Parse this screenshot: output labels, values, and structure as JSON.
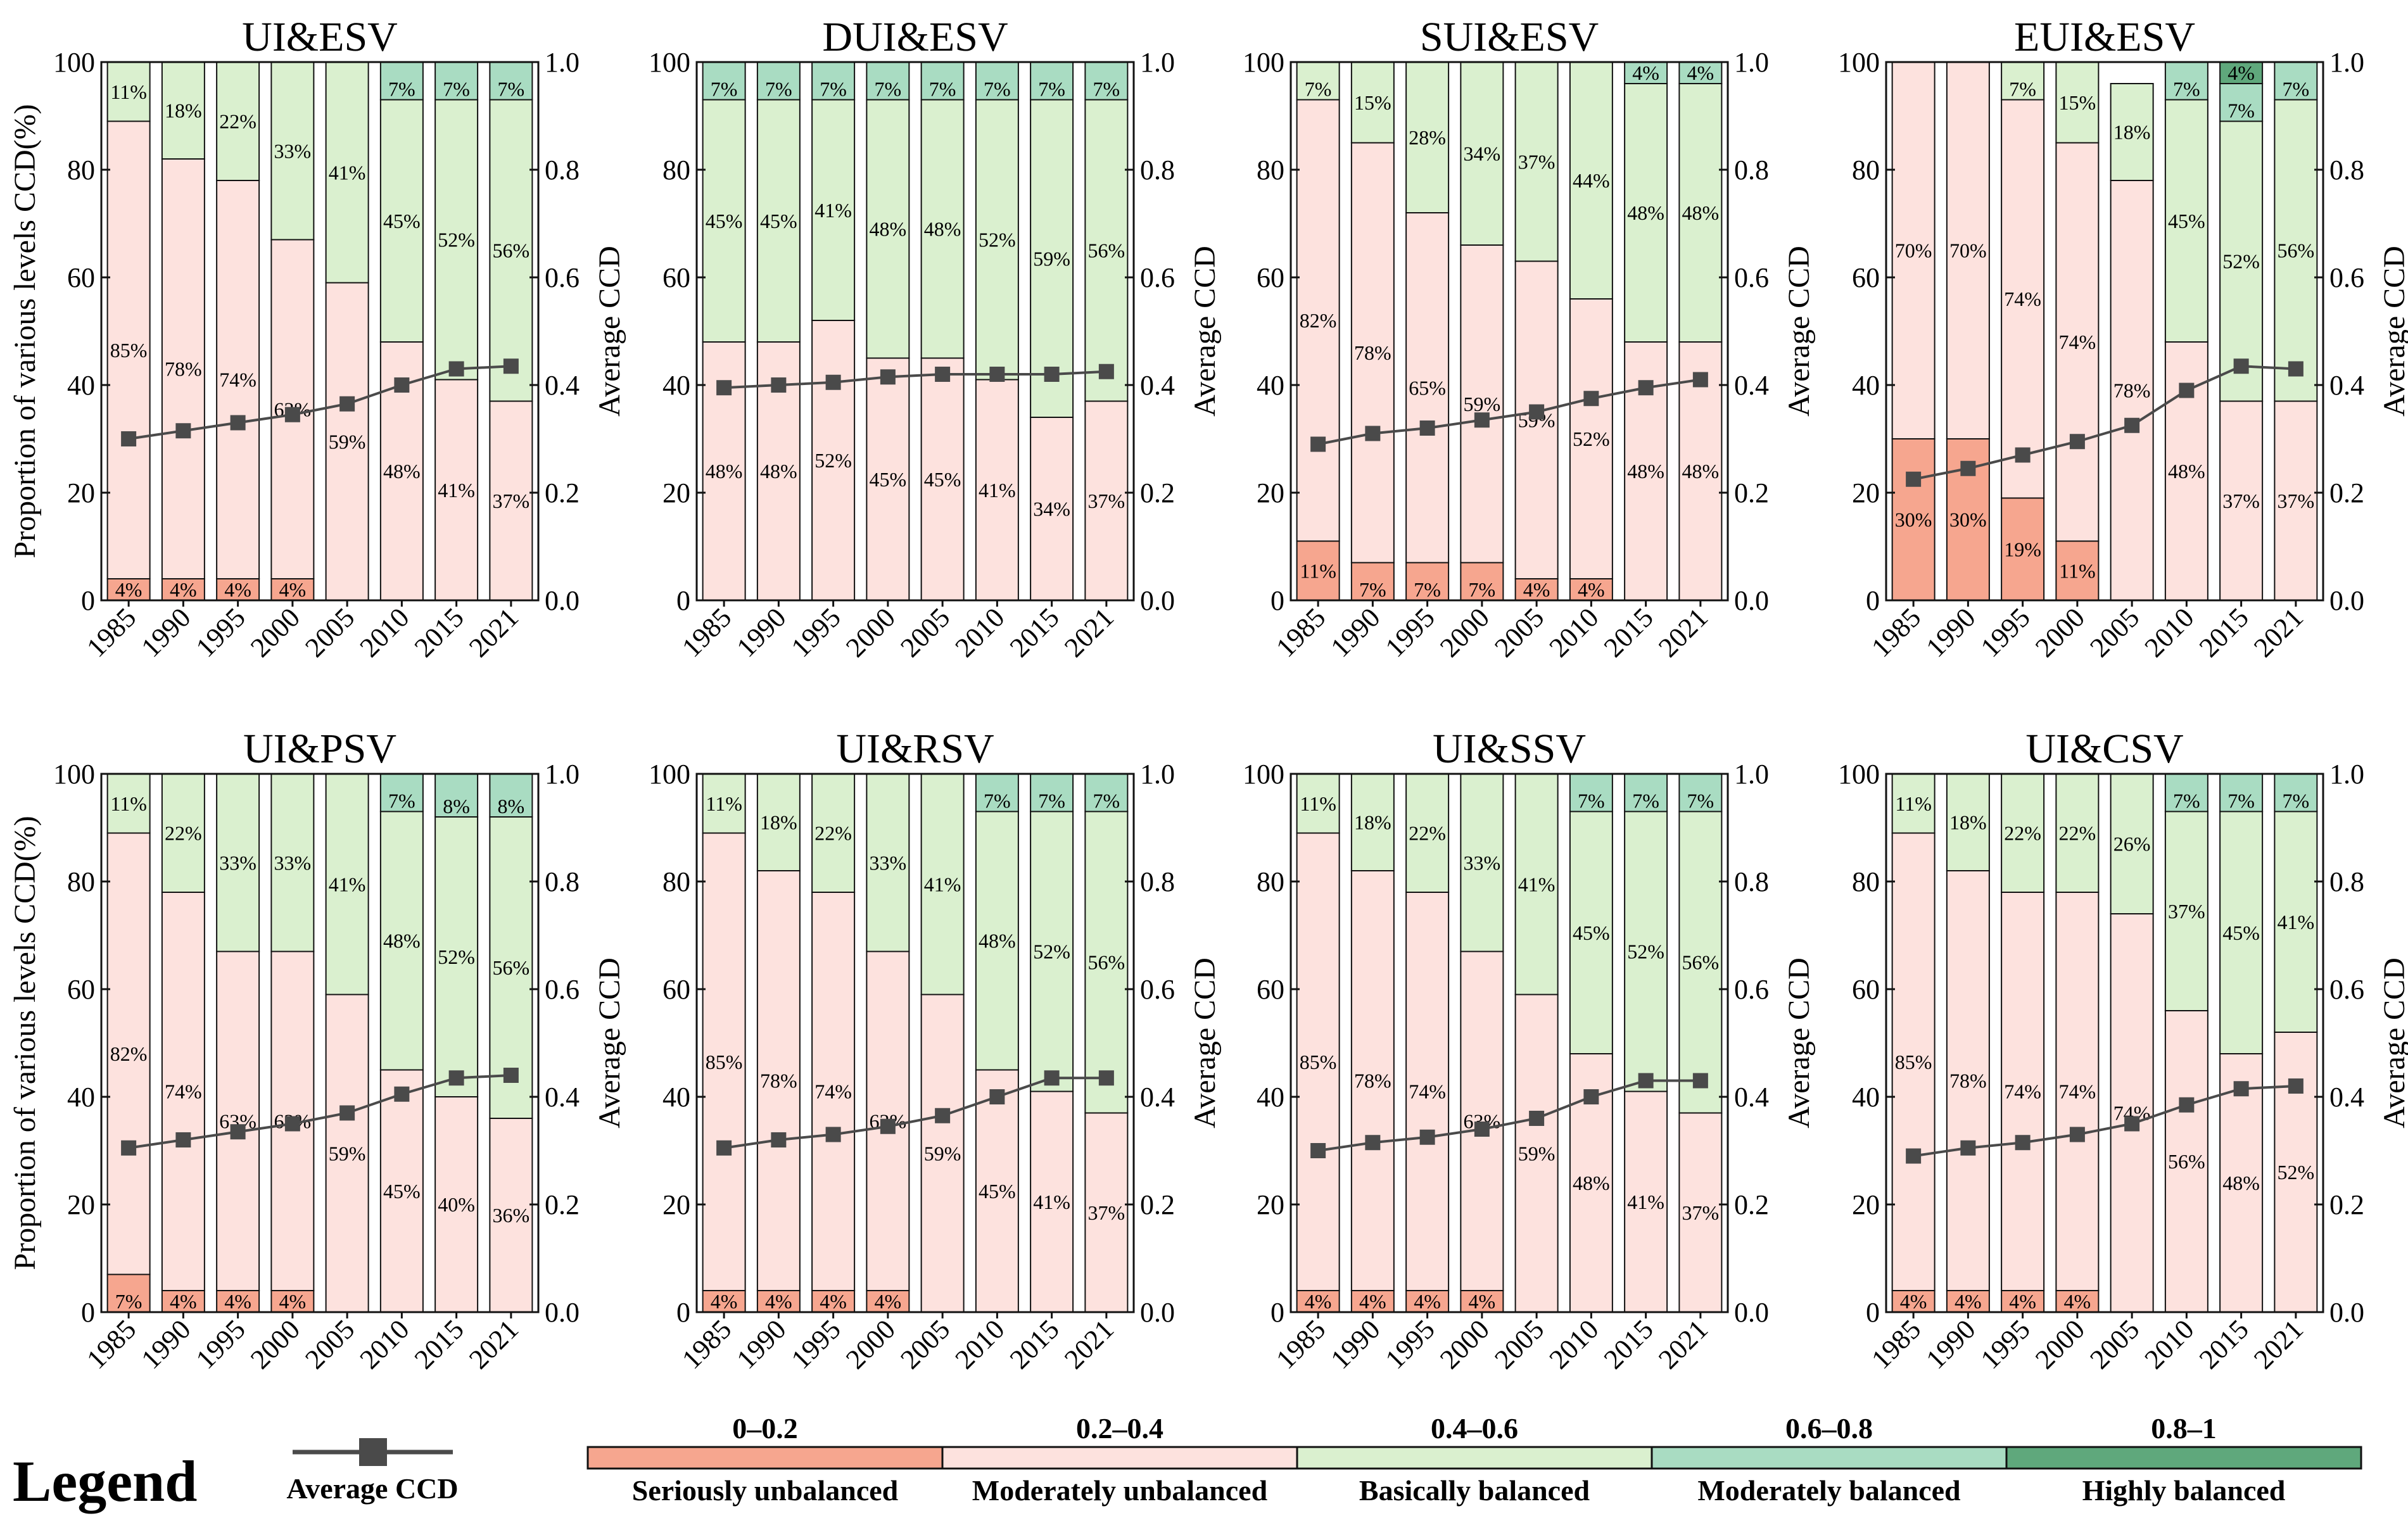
{
  "colors": {
    "seriously_unbalanced": "#f6a68f",
    "moderately_unbalanced": "#fde2de",
    "basically_balanced": "#daf0cf",
    "moderately_balanced": "#a9dcc2",
    "highly_balanced": "#5fa87c",
    "line": "#4a4a4a"
  },
  "legend": {
    "title": "Legend",
    "line_label": "Average CCD",
    "items": [
      {
        "range": "0–0.2",
        "label": "Seriously unbalanced",
        "color": "#f6a68f"
      },
      {
        "range": "0.2–0.4",
        "label": "Moderately unbalanced",
        "color": "#fde2de"
      },
      {
        "range": "0.4–0.6",
        "label": "Basically balanced",
        "color": "#daf0cf"
      },
      {
        "range": "0.6–0.8",
        "label": "Moderately balanced",
        "color": "#a9dcc2"
      },
      {
        "range": "0.8–1",
        "label": "Highly balanced",
        "color": "#5fa87c"
      }
    ]
  },
  "chart_data": [
    {
      "type": "bar",
      "title": "UI&ESV",
      "categories": [
        "1985",
        "1990",
        "1995",
        "2000",
        "2005",
        "2010",
        "2015",
        "2021"
      ],
      "ylabel": "Proportion of various levels CCD(%)",
      "y2label": "Average CCD",
      "ylim": [
        0,
        100
      ],
      "y2lim": [
        0,
        1.0
      ],
      "yticks": [
        "0",
        "20",
        "40",
        "60",
        "80",
        "100"
      ],
      "y2ticks": [
        "0.0",
        "0.2",
        "0.4",
        "0.6",
        "0.8",
        "1.0"
      ],
      "series": [
        {
          "name": "Seriously unbalanced",
          "values": [
            4,
            4,
            4,
            4,
            0,
            0,
            0,
            0
          ]
        },
        {
          "name": "Moderately unbalanced",
          "values": [
            85,
            78,
            74,
            63,
            59,
            48,
            41,
            37
          ]
        },
        {
          "name": "Basically balanced",
          "values": [
            11,
            18,
            22,
            33,
            41,
            45,
            52,
            56
          ]
        },
        {
          "name": "Moderately balanced",
          "values": [
            0,
            0,
            0,
            0,
            0,
            7,
            7,
            7
          ]
        },
        {
          "name": "Highly balanced",
          "values": [
            0,
            0,
            0,
            0,
            0,
            0,
            0,
            0
          ]
        }
      ],
      "line": {
        "name": "Average CCD",
        "values": [
          0.3,
          0.315,
          0.33,
          0.345,
          0.365,
          0.4,
          0.43,
          0.435
        ]
      }
    },
    {
      "type": "bar",
      "title": "DUI&ESV",
      "categories": [
        "1985",
        "1990",
        "1995",
        "2000",
        "2005",
        "2010",
        "2015",
        "2021"
      ],
      "ylabel": "",
      "y2label": "Average CCD",
      "ylim": [
        0,
        100
      ],
      "y2lim": [
        0,
        1.0
      ],
      "yticks": [
        "0",
        "20",
        "40",
        "60",
        "80",
        "100"
      ],
      "y2ticks": [
        "0.0",
        "0.2",
        "0.4",
        "0.6",
        "0.8",
        "1.0"
      ],
      "series": [
        {
          "name": "Seriously unbalanced",
          "values": [
            0,
            0,
            0,
            0,
            0,
            0,
            0,
            0
          ]
        },
        {
          "name": "Moderately unbalanced",
          "values": [
            48,
            48,
            52,
            45,
            45,
            41,
            34,
            37
          ]
        },
        {
          "name": "Basically balanced",
          "values": [
            45,
            45,
            41,
            48,
            48,
            52,
            59,
            56
          ]
        },
        {
          "name": "Moderately balanced",
          "values": [
            7,
            7,
            7,
            7,
            7,
            7,
            7,
            7
          ]
        },
        {
          "name": "Highly balanced",
          "values": [
            0,
            0,
            0,
            0,
            0,
            0,
            0,
            0
          ]
        }
      ],
      "line": {
        "name": "Average CCD",
        "values": [
          0.395,
          0.4,
          0.405,
          0.415,
          0.42,
          0.42,
          0.42,
          0.425
        ]
      }
    },
    {
      "type": "bar",
      "title": "SUI&ESV",
      "categories": [
        "1985",
        "1990",
        "1995",
        "2000",
        "2005",
        "2010",
        "2015",
        "2021"
      ],
      "ylabel": "",
      "y2label": "Average CCD",
      "ylim": [
        0,
        100
      ],
      "y2lim": [
        0,
        1.0
      ],
      "yticks": [
        "0",
        "20",
        "40",
        "60",
        "80",
        "100"
      ],
      "y2ticks": [
        "0.0",
        "0.2",
        "0.4",
        "0.6",
        "0.8",
        "1.0"
      ],
      "series": [
        {
          "name": "Seriously unbalanced",
          "values": [
            11,
            7,
            7,
            7,
            4,
            4,
            0,
            0
          ]
        },
        {
          "name": "Moderately unbalanced",
          "values": [
            82,
            78,
            65,
            59,
            59,
            52,
            48,
            48
          ]
        },
        {
          "name": "Basically balanced",
          "values": [
            7,
            15,
            28,
            34,
            37,
            44,
            48,
            48
          ]
        },
        {
          "name": "Moderately balanced",
          "values": [
            0,
            0,
            0,
            0,
            0,
            0,
            4,
            4
          ]
        },
        {
          "name": "Highly balanced",
          "values": [
            0,
            0,
            0,
            0,
            0,
            0,
            0,
            0
          ]
        }
      ],
      "line": {
        "name": "Average CCD",
        "values": [
          0.29,
          0.31,
          0.32,
          0.335,
          0.35,
          0.375,
          0.395,
          0.41
        ]
      }
    },
    {
      "type": "bar",
      "title": "EUI&ESV",
      "categories": [
        "1985",
        "1990",
        "1995",
        "2000",
        "2005",
        "2010",
        "2015",
        "2021"
      ],
      "ylabel": "",
      "y2label": "Average CCD",
      "ylim": [
        0,
        100
      ],
      "y2lim": [
        0,
        1.0
      ],
      "yticks": [
        "0",
        "20",
        "40",
        "60",
        "80",
        "100"
      ],
      "y2ticks": [
        "0.0",
        "0.2",
        "0.4",
        "0.6",
        "0.8",
        "1.0"
      ],
      "series": [
        {
          "name": "Seriously unbalanced",
          "values": [
            30,
            30,
            19,
            11,
            0,
            0,
            0,
            0
          ]
        },
        {
          "name": "Moderately unbalanced",
          "values": [
            70,
            70,
            74,
            74,
            78,
            48,
            37,
            37
          ]
        },
        {
          "name": "Basically balanced",
          "values": [
            0,
            0,
            7,
            15,
            18,
            45,
            52,
            56
          ]
        },
        {
          "name": "Moderately balanced",
          "values": [
            0,
            0,
            0,
            0,
            0,
            7,
            7,
            7
          ]
        },
        {
          "name": "Highly balanced",
          "values": [
            0,
            0,
            0,
            0,
            0,
            0,
            4,
            0
          ]
        }
      ],
      "line": {
        "name": "Average CCD",
        "values": [
          0.225,
          0.245,
          0.27,
          0.295,
          0.325,
          0.39,
          0.435,
          0.43
        ]
      }
    },
    {
      "type": "bar",
      "title": "UI&PSV",
      "categories": [
        "1985",
        "1990",
        "1995",
        "2000",
        "2005",
        "2010",
        "2015",
        "2021"
      ],
      "ylabel": "Proportion of various levels CCD(%)",
      "y2label": "Average CCD",
      "ylim": [
        0,
        100
      ],
      "y2lim": [
        0,
        1.0
      ],
      "yticks": [
        "0",
        "20",
        "40",
        "60",
        "80",
        "100"
      ],
      "y2ticks": [
        "0.0",
        "0.2",
        "0.4",
        "0.6",
        "0.8",
        "1.0"
      ],
      "series": [
        {
          "name": "Seriously unbalanced",
          "values": [
            7,
            4,
            4,
            4,
            0,
            0,
            0,
            0
          ]
        },
        {
          "name": "Moderately unbalanced",
          "values": [
            82,
            74,
            63,
            63,
            59,
            45,
            40,
            36
          ]
        },
        {
          "name": "Basically balanced",
          "values": [
            11,
            22,
            33,
            33,
            41,
            48,
            52,
            56
          ]
        },
        {
          "name": "Moderately balanced",
          "values": [
            0,
            0,
            0,
            0,
            0,
            7,
            8,
            8
          ]
        },
        {
          "name": "Highly balanced",
          "values": [
            0,
            0,
            0,
            0,
            0,
            0,
            0,
            0
          ]
        }
      ],
      "line": {
        "name": "Average CCD",
        "values": [
          0.305,
          0.32,
          0.335,
          0.35,
          0.37,
          0.405,
          0.435,
          0.44
        ]
      }
    },
    {
      "type": "bar",
      "title": "UI&RSV",
      "categories": [
        "1985",
        "1990",
        "1995",
        "2000",
        "2005",
        "2010",
        "2015",
        "2021"
      ],
      "ylabel": "",
      "y2label": "Average CCD",
      "ylim": [
        0,
        100
      ],
      "y2lim": [
        0,
        1.0
      ],
      "yticks": [
        "0",
        "20",
        "40",
        "60",
        "80",
        "100"
      ],
      "y2ticks": [
        "0.0",
        "0.2",
        "0.4",
        "0.6",
        "0.8",
        "1.0"
      ],
      "series": [
        {
          "name": "Seriously unbalanced",
          "values": [
            4,
            4,
            4,
            4,
            0,
            0,
            0,
            0
          ]
        },
        {
          "name": "Moderately unbalanced",
          "values": [
            85,
            78,
            74,
            63,
            59,
            45,
            41,
            37
          ]
        },
        {
          "name": "Basically balanced",
          "values": [
            11,
            18,
            22,
            33,
            41,
            48,
            52,
            56
          ]
        },
        {
          "name": "Moderately balanced",
          "values": [
            0,
            0,
            0,
            0,
            0,
            7,
            7,
            7
          ]
        },
        {
          "name": "Highly balanced",
          "values": [
            0,
            0,
            0,
            0,
            0,
            0,
            0,
            0
          ]
        }
      ],
      "line": {
        "name": "Average CCD",
        "values": [
          0.305,
          0.32,
          0.33,
          0.345,
          0.365,
          0.4,
          0.435,
          0.435
        ]
      }
    },
    {
      "type": "bar",
      "title": "UI&SSV",
      "categories": [
        "1985",
        "1990",
        "1995",
        "2000",
        "2005",
        "2010",
        "2015",
        "2021"
      ],
      "ylabel": "",
      "y2label": "Average CCD",
      "ylim": [
        0,
        100
      ],
      "y2lim": [
        0,
        1.0
      ],
      "yticks": [
        "0",
        "20",
        "40",
        "60",
        "80",
        "100"
      ],
      "y2ticks": [
        "0.0",
        "0.2",
        "0.4",
        "0.6",
        "0.8",
        "1.0"
      ],
      "series": [
        {
          "name": "Seriously unbalanced",
          "values": [
            4,
            4,
            4,
            4,
            0,
            0,
            0,
            0
          ]
        },
        {
          "name": "Moderately unbalanced",
          "values": [
            85,
            78,
            74,
            63,
            59,
            48,
            41,
            37
          ]
        },
        {
          "name": "Basically balanced",
          "values": [
            11,
            18,
            22,
            33,
            41,
            45,
            52,
            56
          ]
        },
        {
          "name": "Moderately balanced",
          "values": [
            0,
            0,
            0,
            0,
            0,
            7,
            7,
            7
          ]
        },
        {
          "name": "Highly balanced",
          "values": [
            0,
            0,
            0,
            0,
            0,
            0,
            0,
            0
          ]
        }
      ],
      "line": {
        "name": "Average CCD",
        "values": [
          0.3,
          0.315,
          0.325,
          0.34,
          0.36,
          0.4,
          0.43,
          0.43
        ]
      }
    },
    {
      "type": "bar",
      "title": "UI&CSV",
      "categories": [
        "1985",
        "1990",
        "1995",
        "2000",
        "2005",
        "2010",
        "2015",
        "2021"
      ],
      "ylabel": "",
      "y2label": "Average CCD",
      "ylim": [
        0,
        100
      ],
      "y2lim": [
        0,
        1.0
      ],
      "yticks": [
        "0",
        "20",
        "40",
        "60",
        "80",
        "100"
      ],
      "y2ticks": [
        "0.0",
        "0.2",
        "0.4",
        "0.6",
        "0.8",
        "1.0"
      ],
      "series": [
        {
          "name": "Seriously unbalanced",
          "values": [
            4,
            4,
            4,
            4,
            0,
            0,
            0,
            0
          ]
        },
        {
          "name": "Moderately unbalanced",
          "values": [
            85,
            78,
            74,
            74,
            74,
            56,
            48,
            52
          ]
        },
        {
          "name": "Basically balanced",
          "values": [
            11,
            18,
            22,
            22,
            26,
            37,
            45,
            41
          ]
        },
        {
          "name": "Moderately balanced",
          "values": [
            0,
            0,
            0,
            0,
            0,
            7,
            7,
            7
          ]
        },
        {
          "name": "Highly balanced",
          "values": [
            0,
            0,
            0,
            0,
            0,
            0,
            0,
            0
          ]
        }
      ],
      "line": {
        "name": "Average CCD",
        "values": [
          0.29,
          0.305,
          0.315,
          0.33,
          0.35,
          0.385,
          0.415,
          0.42
        ]
      }
    }
  ]
}
